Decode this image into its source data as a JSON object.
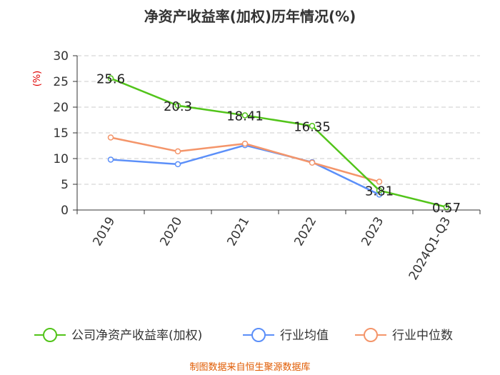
{
  "chart_data": {
    "type": "line",
    "title": "净资产收益率(加权)历年情况(%)",
    "ylabel": "(%)",
    "xlabel": "",
    "categories": [
      "2019",
      "2020",
      "2021",
      "2022",
      "2023",
      "2024Q1-Q3"
    ],
    "ylim": [
      0,
      30
    ],
    "yticks": [
      0,
      5,
      10,
      15,
      20,
      25,
      30
    ],
    "grid": true,
    "legend_position": "bottom",
    "series": [
      {
        "name": "公司净资产收益率(加权)",
        "color": "#52c41a",
        "values": [
          25.6,
          20.3,
          18.41,
          16.35,
          3.81,
          0.57
        ],
        "labels": [
          "25.6",
          "20.3",
          "18.41",
          "16.35",
          "3.81",
          "0.57"
        ]
      },
      {
        "name": "行业均值",
        "color": "#5b8ff9",
        "values": [
          9.8,
          8.9,
          12.6,
          9.3,
          3.0,
          null
        ]
      },
      {
        "name": "行业中位数",
        "color": "#f4956a",
        "values": [
          14.1,
          11.4,
          12.9,
          9.2,
          5.5,
          null
        ]
      }
    ]
  },
  "source": "制图数据来自恒生聚源数据库"
}
